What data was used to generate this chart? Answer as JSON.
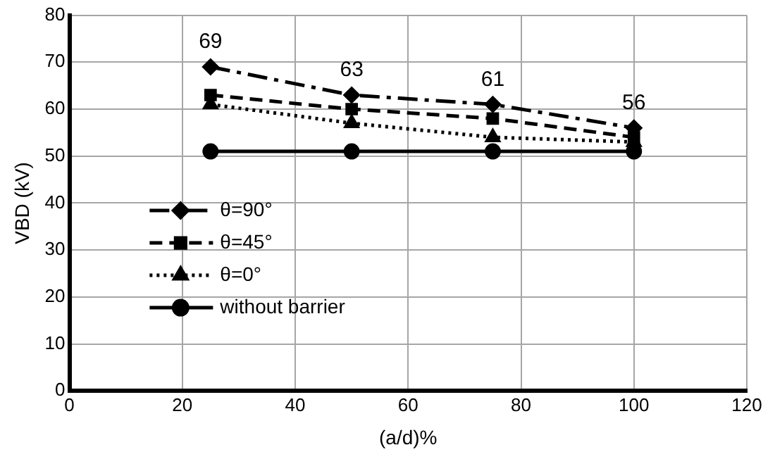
{
  "chart_data": {
    "type": "line",
    "xlabel": "(a/d)%",
    "ylabel": "VBD (kV)",
    "x": [
      25,
      50,
      75,
      100
    ],
    "series": [
      {
        "name": "θ=90°",
        "color": "#000000",
        "values": [
          69,
          63,
          61,
          56
        ],
        "marker": "diamond",
        "line_style": "dashdot",
        "value_labels": [
          "69",
          "63",
          "61",
          "56"
        ]
      },
      {
        "name": "θ=45°",
        "color": "#000000",
        "values": [
          63,
          60,
          58,
          54
        ],
        "marker": "square",
        "line_style": "dashed"
      },
      {
        "name": "θ=0°",
        "color": "#000000",
        "values": [
          61,
          57,
          54,
          53
        ],
        "marker": "triangle",
        "line_style": "dotted"
      },
      {
        "name": "without barrier",
        "color": "#000000",
        "values": [
          51,
          51,
          51,
          51
        ],
        "marker": "circle",
        "line_style": "solid"
      }
    ],
    "xlim": [
      0,
      120
    ],
    "xticks": [
      0,
      20,
      40,
      60,
      80,
      100,
      120
    ],
    "ylim": [
      0,
      80
    ],
    "yticks": [
      0,
      10,
      20,
      30,
      40,
      50,
      60,
      70,
      80
    ],
    "grid": true,
    "legend": "left"
  }
}
